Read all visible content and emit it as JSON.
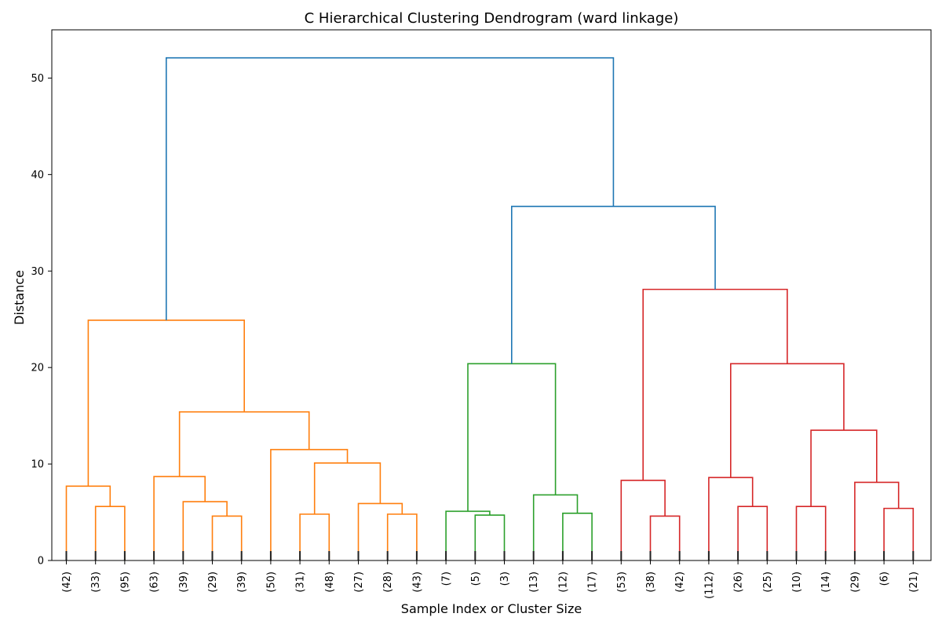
{
  "chart_data": {
    "type": "dendrogram",
    "title": "C Hierarchical Clustering Dendrogram (ward linkage)",
    "xlabel": "Sample Index or Cluster Size",
    "ylabel": "Distance",
    "ylim": [
      0,
      55
    ],
    "yticks": [
      0,
      10,
      20,
      30,
      40,
      50
    ],
    "colors": {
      "orange": "#ff7f0e",
      "green": "#2ca02c",
      "red": "#d62728",
      "blue": "#1f77b4"
    },
    "leaves": [
      "(42)",
      "(33)",
      "(95)",
      "(63)",
      "(39)",
      "(29)",
      "(39)",
      "(50)",
      "(31)",
      "(48)",
      "(27)",
      "(28)",
      "(43)",
      "(7)",
      "(5)",
      "(3)",
      "(13)",
      "(12)",
      "(17)",
      "(53)",
      "(38)",
      "(42)",
      "(112)",
      "(26)",
      "(25)",
      "(10)",
      "(14)",
      "(29)",
      "(6)",
      "(21)"
    ],
    "merges": [
      {
        "left": 1.0,
        "right": 2.0,
        "height": 5.6,
        "color": "orange"
      },
      {
        "left": 0.0,
        "right": 1.5,
        "height": 7.7,
        "color": "orange"
      },
      {
        "left": 5.0,
        "right": 6.0,
        "height": 4.6,
        "color": "orange"
      },
      {
        "left": 4.0,
        "right": 5.5,
        "height": 6.1,
        "color": "orange"
      },
      {
        "left": 3.0,
        "right": 4.75,
        "height": 8.7,
        "color": "orange"
      },
      {
        "left": 8.0,
        "right": 9.0,
        "height": 4.8,
        "color": "orange"
      },
      {
        "left": 11.0,
        "right": 12.0,
        "height": 4.8,
        "color": "orange"
      },
      {
        "left": 10.0,
        "right": 11.5,
        "height": 5.9,
        "color": "orange"
      },
      {
        "left": 8.5,
        "right": 10.75,
        "height": 10.1,
        "color": "orange"
      },
      {
        "left": 7.0,
        "right": 9.625,
        "height": 11.5,
        "color": "orange"
      },
      {
        "left": 3.875,
        "right": 8.3125,
        "height": 15.4,
        "color": "orange"
      },
      {
        "left": 0.75,
        "right": 6.09375,
        "height": 24.9,
        "color": "orange"
      },
      {
        "left": 14.0,
        "right": 15.0,
        "height": 4.7,
        "color": "green"
      },
      {
        "left": 13.0,
        "right": 14.5,
        "height": 5.1,
        "color": "green"
      },
      {
        "left": 17.0,
        "right": 18.0,
        "height": 4.9,
        "color": "green"
      },
      {
        "left": 16.0,
        "right": 17.5,
        "height": 6.8,
        "color": "green"
      },
      {
        "left": 13.75,
        "right": 16.75,
        "height": 20.4,
        "color": "green"
      },
      {
        "left": 20.0,
        "right": 21.0,
        "height": 4.6,
        "color": "red"
      },
      {
        "left": 19.0,
        "right": 20.5,
        "height": 8.3,
        "color": "red"
      },
      {
        "left": 23.0,
        "right": 24.0,
        "height": 5.6,
        "color": "red"
      },
      {
        "left": 22.0,
        "right": 23.5,
        "height": 8.6,
        "color": "red"
      },
      {
        "left": 25.0,
        "right": 26.0,
        "height": 5.6,
        "color": "red"
      },
      {
        "left": 28.0,
        "right": 29.0,
        "height": 5.4,
        "color": "red"
      },
      {
        "left": 27.0,
        "right": 28.5,
        "height": 8.1,
        "color": "red"
      },
      {
        "left": 25.5,
        "right": 27.75,
        "height": 13.5,
        "color": "red"
      },
      {
        "left": 22.75,
        "right": 26.625,
        "height": 20.4,
        "color": "red"
      },
      {
        "left": 19.75,
        "right": 24.6875,
        "height": 28.1,
        "color": "red"
      },
      {
        "left": 15.25,
        "right": 22.21875,
        "height": 36.7,
        "color": "blue"
      },
      {
        "left": 3.421875,
        "right": 18.734375,
        "height": 52.1,
        "color": "blue"
      }
    ]
  }
}
